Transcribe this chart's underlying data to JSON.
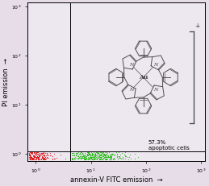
{
  "background_color": "#e6dde8",
  "plot_bg_color": "#ede7f0",
  "xlim_log": [
    0.7,
    1200
  ],
  "ylim_log": [
    0.7,
    1200
  ],
  "x_ticks": [
    1,
    10,
    100,
    1000
  ],
  "y_ticks": [
    1,
    10,
    100,
    1000
  ],
  "xlabel": "annexin-V FITC emission",
  "ylabel": "PI emission",
  "divider_x_log": 0.62,
  "divider_y_log": 0.05,
  "annotation_text": "57.3%\napoptotic cells",
  "red_n": 1800,
  "red_color": "#dd1111",
  "green_n": 2000,
  "green_color": "#22bb11",
  "dot_size": 0.6,
  "bracket_color": "#333333",
  "lw_gray": "#444444",
  "font_size_label": 6,
  "font_size_annot": 5,
  "font_size_tick": 4.5
}
